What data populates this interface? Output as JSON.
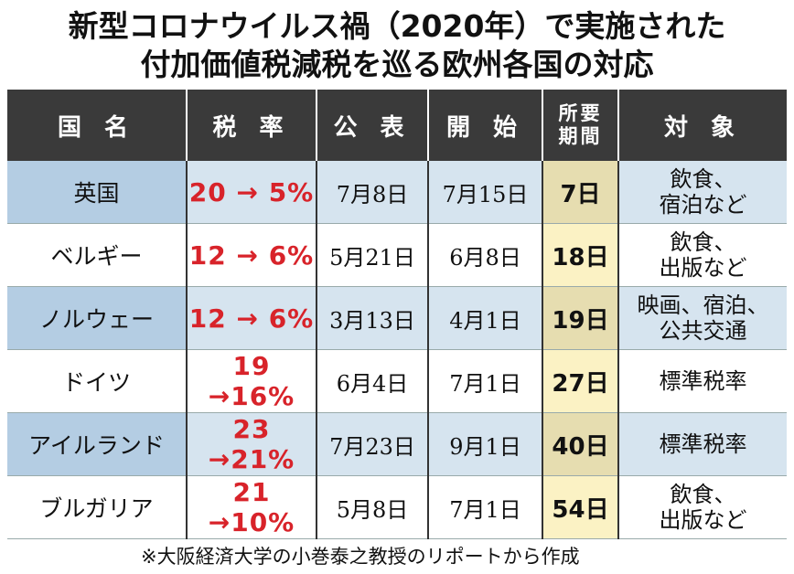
{
  "title": {
    "line1": "新型コロナウイルス禍（2020年）で実施された",
    "line2": "付加価値税減税を巡る欧州各国の対応"
  },
  "columns": {
    "country": "国 名",
    "rate": "税 率",
    "announce": "公 表",
    "start": "開 始",
    "period_line1": "所要",
    "period_line2": "期間",
    "target": "対 象"
  },
  "rows": [
    {
      "country": "英国",
      "rate": "20 → 5%",
      "announce": "7月8日",
      "start": "7月15日",
      "days": "7日",
      "target_line1": "飲食、",
      "target_line2": "宿泊など"
    },
    {
      "country": "ベルギー",
      "rate": "12 → 6%",
      "announce": "5月21日",
      "start": "6月8日",
      "days": "18日",
      "target_line1": "飲食、",
      "target_line2": "出版など"
    },
    {
      "country": "ノルウェー",
      "rate": "12 → 6%",
      "announce": "3月13日",
      "start": "4月1日",
      "days": "19日",
      "target_line1": "映画、宿泊、",
      "target_line2": "公共交通"
    },
    {
      "country": "ドイツ",
      "rate": "19 →16%",
      "announce": "6月4日",
      "start": "7月1日",
      "days": "27日",
      "target_line1": "標準税率",
      "target_line2": ""
    },
    {
      "country": "アイルランド",
      "rate": "23 →21%",
      "announce": "7月23日",
      "start": "9月1日",
      "days": "40日",
      "target_line1": "標準税率",
      "target_line2": ""
    },
    {
      "country": "ブルガリア",
      "rate": "21 →10%",
      "announce": "5月8日",
      "start": "7月1日",
      "days": "54日",
      "target_line1": "飲食、",
      "target_line2": "出版など"
    }
  ],
  "footnote": "※大阪経済大学の小巻泰之教授のリポートから作成"
}
